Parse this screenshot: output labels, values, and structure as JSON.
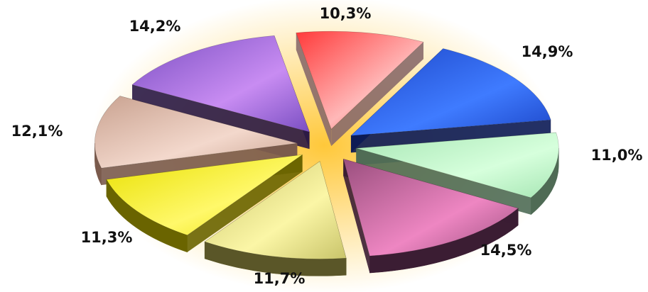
{
  "chart_data": {
    "type": "pie",
    "style": "3d-exploded",
    "title": "",
    "legend": "none",
    "background": {
      "glow_inner": "#ffc83a",
      "glow_outer": "#ffffff"
    },
    "slices": [
      {
        "label": "10,3%",
        "value": 10.3,
        "color": "#ff3a3a",
        "light": "#ffb8b8",
        "side": "#8a6a6a"
      },
      {
        "label": "14,9%",
        "value": 14.9,
        "color": "#1d47c8",
        "light": "#3f7bff",
        "side": "#0b1a55"
      },
      {
        "label": "11,0%",
        "value": 11.0,
        "color": "#a7e6b4",
        "light": "#d6ffdc",
        "side": "#4f6b55"
      },
      {
        "label": "14,5%",
        "value": 14.5,
        "color": "#9a4f7e",
        "light": "#ee86c2",
        "side": "#3b1d33"
      },
      {
        "label": "11,7%",
        "value": 11.7,
        "color": "#c9c46a",
        "light": "#fbf6a6",
        "side": "#5a5628"
      },
      {
        "label": "11,3%",
        "value": 11.3,
        "color": "#e8e000",
        "light": "#fff86a",
        "side": "#6a6400"
      },
      {
        "label": "12,1%",
        "value": 12.1,
        "color": "#c9a290",
        "light": "#f3d8cc",
        "side": "#7a5a4c"
      },
      {
        "label": "14,2%",
        "value": 14.2,
        "color": "#7a4fc2",
        "light": "#c88cf2",
        "side": "#2a1845"
      }
    ]
  }
}
